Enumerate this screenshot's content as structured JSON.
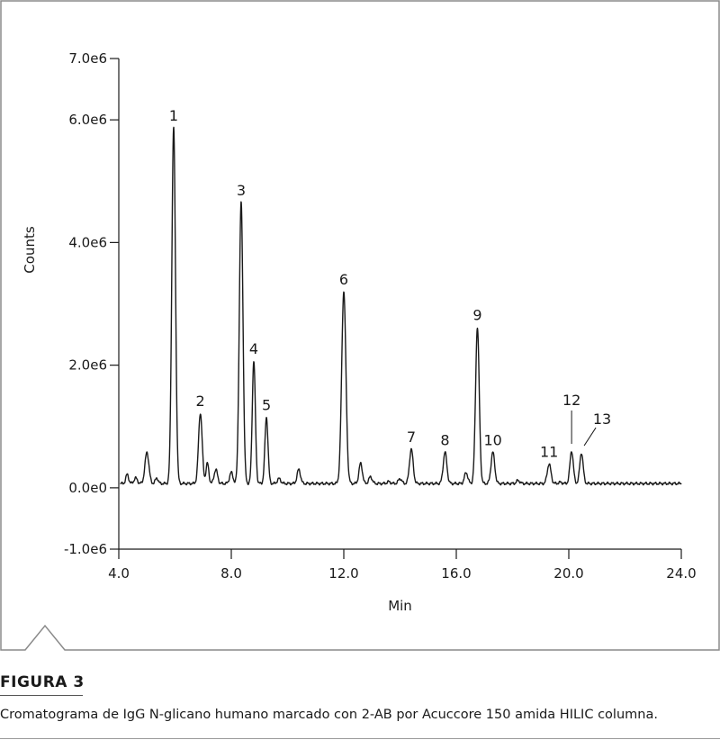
{
  "figure": {
    "label": "FIGURA 3",
    "caption": "Cromatograma de IgG N-glicano humano marcado con 2-AB por Acuccore 150 amida HILIC columna."
  },
  "chart_data": {
    "type": "line",
    "title": "",
    "xlabel": "Min",
    "ylabel": "Counts",
    "xlim": [
      4.0,
      24.0
    ],
    "ylim": [
      -1000000,
      7000000
    ],
    "x_ticks": [
      {
        "value": 4,
        "label": "4.0"
      },
      {
        "value": 8,
        "label": "8.0"
      },
      {
        "value": 12,
        "label": "12.0"
      },
      {
        "value": 16,
        "label": "16.0"
      },
      {
        "value": 20,
        "label": "20.0"
      },
      {
        "value": 24,
        "label": "24.0"
      }
    ],
    "y_ticks": [
      {
        "value": -1000000,
        "label": "-1.0e6"
      },
      {
        "value": 0,
        "label": "0.0e0"
      },
      {
        "value": 2000000,
        "label": "2.0e6"
      },
      {
        "value": 4000000,
        "label": "4.0e6"
      },
      {
        "value": 6000000,
        "label": "6.0e6"
      },
      {
        "value": 7000000,
        "label": "7.0e6"
      }
    ],
    "grid": false,
    "legend": "none",
    "line_color": "#1a1a1a",
    "baseline": 70000,
    "peaks": [
      {
        "label": "",
        "x": 4.3,
        "y": 220000,
        "w": 0.05
      },
      {
        "label": "",
        "x": 4.6,
        "y": 160000,
        "w": 0.06
      },
      {
        "label": "",
        "x": 5.0,
        "y": 580000,
        "w": 0.07
      },
      {
        "label": "",
        "x": 5.35,
        "y": 160000,
        "w": 0.05
      },
      {
        "label": "1",
        "x": 5.95,
        "y": 5870000,
        "w": 0.065
      },
      {
        "label": "2",
        "x": 6.9,
        "y": 1220000,
        "w": 0.065
      },
      {
        "label": "",
        "x": 7.15,
        "y": 400000,
        "w": 0.05
      },
      {
        "label": "",
        "x": 7.45,
        "y": 300000,
        "w": 0.06
      },
      {
        "label": "",
        "x": 8.0,
        "y": 250000,
        "w": 0.06
      },
      {
        "label": "3",
        "x": 8.35,
        "y": 4650000,
        "w": 0.065
      },
      {
        "label": "4",
        "x": 8.8,
        "y": 2070000,
        "w": 0.055
      },
      {
        "label": "5",
        "x": 9.25,
        "y": 1150000,
        "w": 0.055
      },
      {
        "label": "",
        "x": 9.7,
        "y": 150000,
        "w": 0.06
      },
      {
        "label": "",
        "x": 10.4,
        "y": 300000,
        "w": 0.06
      },
      {
        "label": "6",
        "x": 12.0,
        "y": 3200000,
        "w": 0.075
      },
      {
        "label": "",
        "x": 12.6,
        "y": 400000,
        "w": 0.06
      },
      {
        "label": "",
        "x": 12.95,
        "y": 180000,
        "w": 0.06
      },
      {
        "label": "",
        "x": 13.6,
        "y": 100000,
        "w": 0.06
      },
      {
        "label": "",
        "x": 14.0,
        "y": 150000,
        "w": 0.06
      },
      {
        "label": "7",
        "x": 14.4,
        "y": 630000,
        "w": 0.065
      },
      {
        "label": "8",
        "x": 15.6,
        "y": 580000,
        "w": 0.065
      },
      {
        "label": "",
        "x": 16.35,
        "y": 250000,
        "w": 0.06
      },
      {
        "label": "9",
        "x": 16.75,
        "y": 2620000,
        "w": 0.065
      },
      {
        "label": "10",
        "x": 17.3,
        "y": 580000,
        "w": 0.065
      },
      {
        "label": "",
        "x": 18.2,
        "y": 120000,
        "w": 0.06
      },
      {
        "label": "11",
        "x": 19.3,
        "y": 390000,
        "w": 0.065
      },
      {
        "label": "",
        "x": 19.7,
        "y": 90000,
        "w": 0.06
      },
      {
        "label": "12",
        "x": 20.1,
        "y": 600000,
        "w": 0.06
      },
      {
        "label": "13",
        "x": 20.45,
        "y": 570000,
        "w": 0.06
      }
    ]
  }
}
